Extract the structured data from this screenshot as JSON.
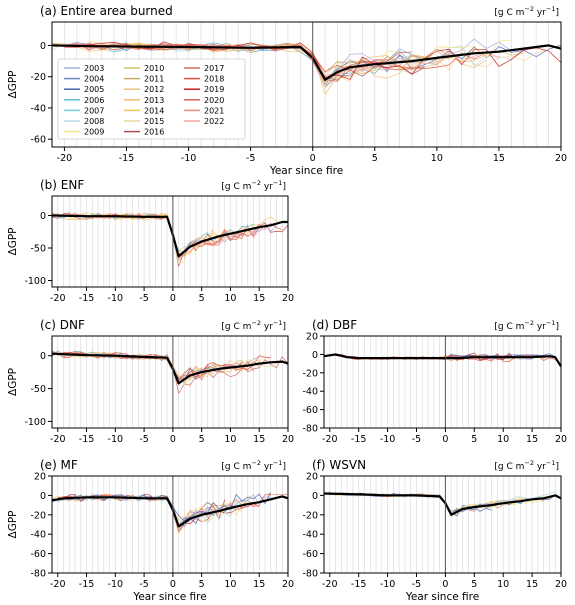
{
  "figure": {
    "x_axis_label": "Year since fire",
    "y_axis_label": "ΔGPP",
    "units_parts": [
      "[g C m",
      "−2",
      " yr",
      "−1",
      "]"
    ]
  },
  "legend": {
    "years": [
      "2003",
      "2004",
      "2005",
      "2006",
      "2007",
      "2008",
      "2009",
      "2010",
      "2011",
      "2012",
      "2013",
      "2014",
      "2015",
      "2016",
      "2017",
      "2018",
      "2019",
      "2020",
      "2021",
      "2022"
    ],
    "colors": [
      "#9fb0de",
      "#6f86c6",
      "#4c63b3",
      "#5fb8d6",
      "#79cfe0",
      "#b9dbe3",
      "#f4e08c",
      "#d9c06a",
      "#c9a96b",
      "#e6c383",
      "#f2be6e",
      "#f5c45a",
      "#f3d8a0",
      "#b54a4a",
      "#d66a5a",
      "#e84c3c",
      "#c81e1e",
      "#e6604e",
      "#f08a7a",
      "#f5a6a6"
    ]
  },
  "chart_data": [
    {
      "type": "line",
      "title": "(a) Entire area burned",
      "xlim": [
        -21,
        20
      ],
      "ylim": [
        -65,
        15
      ],
      "xticks": [
        -20,
        -15,
        -10,
        -5,
        0,
        5,
        10,
        15,
        20
      ],
      "yticks": [
        0,
        -20,
        -40,
        -60
      ],
      "mean_series": {
        "name": "mean",
        "x": [
          -21,
          -18,
          -10,
          -5,
          -1,
          0,
          1,
          2,
          3,
          5,
          8,
          10,
          13,
          15,
          17,
          18,
          19,
          20
        ],
        "y": [
          0,
          -0.5,
          -1,
          -1.5,
          -1,
          -8,
          -22,
          -17,
          -14,
          -12,
          -10,
          -8,
          -5,
          -4,
          -2,
          -1,
          0,
          -2
        ]
      },
      "spread": 10
    },
    {
      "type": "line",
      "title": "(b) ENF",
      "xlim": [
        -21,
        20
      ],
      "ylim": [
        -110,
        30
      ],
      "xticks": [
        -20,
        -15,
        -10,
        -5,
        0,
        5,
        10,
        15,
        20
      ],
      "xticklabels": [
        "-20",
        "-15",
        "-10",
        "-5",
        "0",
        "5",
        "10",
        "15",
        "20"
      ],
      "yticks": [
        0,
        -50,
        -100
      ],
      "mean_series": {
        "name": "mean",
        "x": [
          -21,
          -15,
          -10,
          -5,
          -1,
          0,
          1,
          3,
          5,
          8,
          10,
          13,
          15,
          17,
          19,
          20
        ],
        "y": [
          0,
          -1,
          -1,
          -2,
          -2,
          -30,
          -63,
          -48,
          -40,
          -32,
          -28,
          -22,
          -18,
          -15,
          -10,
          -10
        ]
      },
      "spread": 18
    },
    {
      "type": "line",
      "title": "(c) DNF",
      "xlim": [
        -21,
        20
      ],
      "ylim": [
        -110,
        30
      ],
      "xticks": [
        -20,
        -15,
        -10,
        -5,
        0,
        5,
        10,
        15,
        20
      ],
      "xticklabels": [
        "-20",
        "-15",
        "-10",
        "-5",
        "0",
        "5",
        "10",
        "15",
        "20"
      ],
      "yticks": [
        0,
        -50,
        -100
      ],
      "mean_series": {
        "name": "mean",
        "x": [
          -21,
          -15,
          -10,
          -5,
          -1,
          0,
          1,
          3,
          5,
          8,
          10,
          13,
          15,
          17,
          19,
          20
        ],
        "y": [
          3,
          1,
          0,
          -2,
          -3,
          -20,
          -42,
          -30,
          -25,
          -20,
          -18,
          -15,
          -12,
          -10,
          -9,
          -12
        ]
      },
      "spread": 16
    },
    {
      "type": "line",
      "title": "(d) DBF",
      "xlim": [
        -21,
        20
      ],
      "ylim": [
        -80,
        20
      ],
      "xticks": [
        -20,
        -15,
        -10,
        -5,
        0,
        5,
        10,
        15,
        20
      ],
      "xticklabels": [
        "-20",
        "-15",
        "-10",
        "-5",
        "0",
        "5",
        "10",
        "15",
        "20"
      ],
      "yticks": [
        20,
        0,
        -20,
        -40,
        -60,
        -80
      ],
      "mean_series": {
        "name": "mean",
        "x": [
          -21,
          -19,
          -17,
          -15,
          -10,
          -5,
          -1,
          0,
          2,
          5,
          10,
          15,
          18,
          19,
          20
        ],
        "y": [
          -2,
          0,
          -3,
          -4,
          -4,
          -4,
          -4,
          -4,
          -4,
          -3,
          -3,
          -3,
          -2,
          -3,
          -13
        ]
      },
      "spread": 5
    },
    {
      "type": "line",
      "title": "(e) MF",
      "xlim": [
        -21,
        20
      ],
      "ylim": [
        -80,
        20
      ],
      "xticks": [
        -20,
        -15,
        -10,
        -5,
        0,
        5,
        10,
        15,
        20
      ],
      "xticklabels": [
        "-20",
        "-15",
        "-10",
        "-5",
        "0",
        "5",
        "10",
        "15",
        "20"
      ],
      "yticks": [
        20,
        0,
        -20,
        -40,
        -60,
        -80
      ],
      "mean_series": {
        "name": "mean",
        "x": [
          -21,
          -19,
          -15,
          -10,
          -5,
          -1,
          0,
          1,
          3,
          5,
          8,
          10,
          13,
          15,
          17,
          19,
          20
        ],
        "y": [
          -5,
          -3,
          -2,
          -2,
          -3,
          -3,
          -15,
          -32,
          -24,
          -20,
          -16,
          -13,
          -9,
          -7,
          -4,
          -1,
          -3
        ]
      },
      "spread": 14
    },
    {
      "type": "line",
      "title": "(f) WSVN",
      "xlim": [
        -21,
        20
      ],
      "ylim": [
        -80,
        20
      ],
      "xticks": [
        -20,
        -15,
        -10,
        -5,
        0,
        5,
        10,
        15,
        20
      ],
      "xticklabels": [
        "-20",
        "-15",
        "-10",
        "-5",
        "0",
        "5",
        "10",
        "15",
        "20"
      ],
      "yticks": [
        20,
        0,
        -20,
        -40,
        -60,
        -80
      ],
      "mean_series": {
        "name": "mean",
        "x": [
          -21,
          -15,
          -10,
          -5,
          -1,
          0,
          1,
          3,
          5,
          8,
          10,
          13,
          15,
          17,
          19,
          20
        ],
        "y": [
          2,
          1,
          0,
          0,
          -1,
          -8,
          -20,
          -14,
          -12,
          -10,
          -8,
          -6,
          -4,
          -3,
          0,
          -3
        ]
      },
      "spread": 6
    }
  ]
}
